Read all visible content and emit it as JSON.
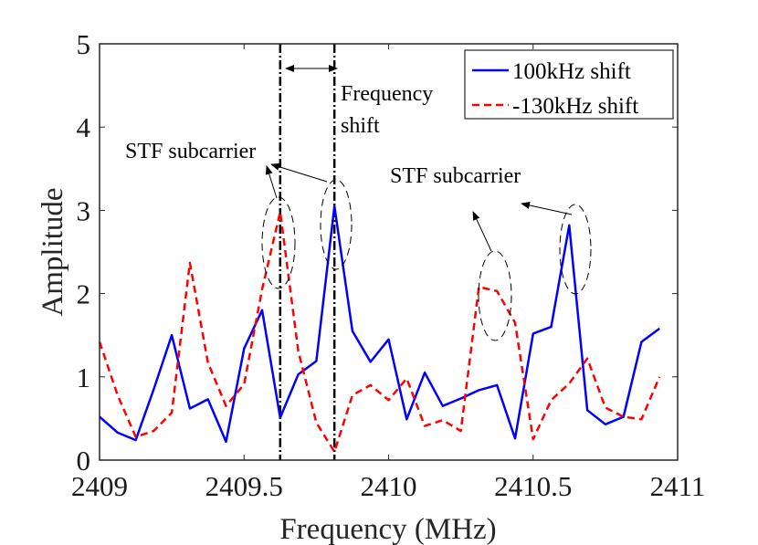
{
  "chart_data": {
    "type": "line",
    "xlabel": "Frequency (MHz)",
    "ylabel": "Amplitude",
    "xlim": [
      2409,
      2411
    ],
    "ylim": [
      0,
      5
    ],
    "xticks": [
      2409,
      2409.5,
      2410,
      2410.5,
      2411
    ],
    "xtick_labels": [
      "2409",
      "2409.5",
      "2410",
      "2410.5",
      "2411"
    ],
    "yticks": [
      0,
      1,
      2,
      3,
      4,
      5
    ],
    "ytick_labels": [
      "0",
      "1",
      "2",
      "3",
      "4",
      "5"
    ],
    "legend_position": "top-right",
    "series": [
      {
        "name": "100kHz shift",
        "color": "#0000ff",
        "style": "solid",
        "x": [
          2409.0,
          2409.0625,
          2409.125,
          2409.1875,
          2409.25,
          2409.3125,
          2409.375,
          2409.4375,
          2409.5,
          2409.5625,
          2409.625,
          2409.6875,
          2409.75,
          2409.8125,
          2409.875,
          2409.9375,
          2410.0,
          2410.0625,
          2410.125,
          2410.1875,
          2410.25,
          2410.3125,
          2410.375,
          2410.4375,
          2410.5,
          2410.5625,
          2410.625,
          2410.6875,
          2410.75,
          2410.8125,
          2410.875,
          2410.9375
        ],
        "y": [
          0.52,
          0.33,
          0.24,
          0.85,
          1.5,
          0.62,
          0.73,
          0.22,
          1.34,
          1.8,
          0.51,
          1.03,
          1.19,
          3.05,
          1.55,
          1.18,
          1.45,
          0.49,
          1.05,
          0.65,
          0.74,
          0.84,
          0.9,
          0.26,
          1.52,
          1.6,
          2.82,
          0.6,
          0.43,
          0.52,
          1.42,
          1.58
        ]
      },
      {
        "name": "-130kHz shift",
        "color": "#ff0000",
        "style": "dashed",
        "x": [
          2409.0,
          2409.0625,
          2409.125,
          2409.1875,
          2409.25,
          2409.3125,
          2409.375,
          2409.4375,
          2409.5,
          2409.5625,
          2409.625,
          2409.6875,
          2409.75,
          2409.8125,
          2409.875,
          2409.9375,
          2410.0,
          2410.0625,
          2410.125,
          2410.1875,
          2410.25,
          2410.3125,
          2410.375,
          2410.4375,
          2410.5,
          2410.5625,
          2410.625,
          2410.6875,
          2410.75,
          2410.8125,
          2410.875,
          2410.9375
        ],
        "y": [
          1.42,
          0.78,
          0.28,
          0.35,
          0.57,
          2.37,
          1.17,
          0.65,
          0.91,
          2.05,
          2.98,
          1.31,
          0.45,
          0.1,
          0.78,
          0.9,
          0.72,
          0.98,
          0.41,
          0.48,
          0.35,
          2.08,
          2.03,
          1.65,
          0.25,
          0.72,
          0.92,
          1.22,
          0.63,
          0.52,
          0.49,
          1.0
        ]
      }
    ],
    "vlines": [
      2409.625,
      2409.8125
    ],
    "annotations": {
      "freq_shift_line1": "Frequency",
      "freq_shift_line2": "shift",
      "stf_left": "STF subcarrier",
      "stf_right": "STF subcarrier"
    }
  }
}
